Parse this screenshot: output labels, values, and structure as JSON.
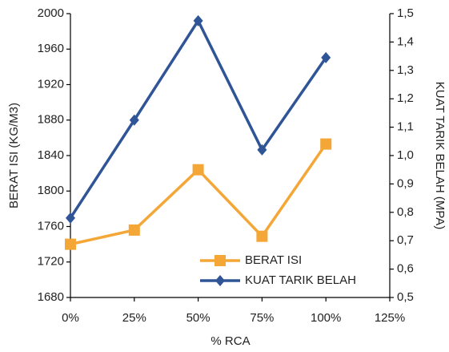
{
  "chart_data": {
    "type": "line",
    "x": [
      0,
      25,
      50,
      75,
      100
    ],
    "xlim": [
      0,
      125
    ],
    "xticks": [
      {
        "value": 0,
        "label": "0%"
      },
      {
        "value": 25,
        "label": "25%"
      },
      {
        "value": 50,
        "label": "50%"
      },
      {
        "value": 75,
        "label": "75%"
      },
      {
        "value": 100,
        "label": "100%"
      },
      {
        "value": 125,
        "label": "125%"
      }
    ],
    "x_label": "% RCA",
    "ylim": [
      1680,
      2000
    ],
    "yticks": [
      1680,
      1720,
      1760,
      1800,
      1840,
      1880,
      1920,
      1960,
      2000
    ],
    "y_label": "BERAT ISI (KG/M3)",
    "y2lim": [
      0.5,
      1.5
    ],
    "y2ticks": [
      {
        "value": 0.5,
        "label": "0,5"
      },
      {
        "value": 0.6,
        "label": "0,6"
      },
      {
        "value": 0.7,
        "label": "0,7"
      },
      {
        "value": 0.8,
        "label": "0,8"
      },
      {
        "value": 0.9,
        "label": "0,9"
      },
      {
        "value": 1.0,
        "label": "1,0"
      },
      {
        "value": 1.1,
        "label": "1,1"
      },
      {
        "value": 1.2,
        "label": "1,2"
      },
      {
        "value": 1.3,
        "label": "1,3"
      },
      {
        "value": 1.4,
        "label": "1,4"
      },
      {
        "value": 1.5,
        "label": "1,5"
      }
    ],
    "y2_label": "KUAT TARIK BELAH (MPA)",
    "legend": "lower right",
    "series": [
      {
        "name": "BERAT ISI",
        "color": "#f4a636",
        "marker": "square",
        "values": [
          1740,
          1756,
          1824,
          1749,
          1853
        ]
      },
      {
        "name": "KUAT TARIK BELAH",
        "color": "#2f5597",
        "marker": "diamond",
        "axis": "y2",
        "values": [
          0.78,
          1.125,
          1.475,
          1.02,
          1.345
        ]
      }
    ]
  }
}
